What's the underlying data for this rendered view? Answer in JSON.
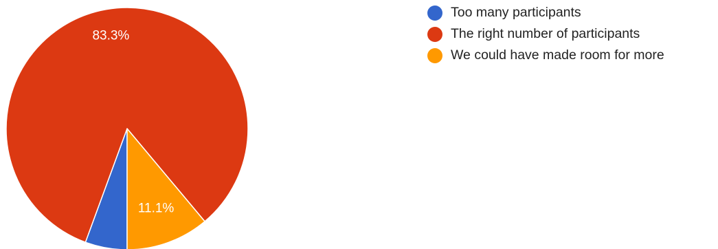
{
  "chart_data": {
    "type": "pie",
    "categories": [
      "Too many participants",
      "The right number of participants",
      "We could have made room for more"
    ],
    "values": [
      5.6,
      83.3,
      11.1
    ],
    "value_labels": [
      "",
      "83.3%",
      "11.1%"
    ],
    "colors": [
      "#3366cc",
      "#dc3912",
      "#ff9900"
    ],
    "legend_position": "right",
    "start_angle_deg": 90,
    "direction": "clockwise"
  }
}
